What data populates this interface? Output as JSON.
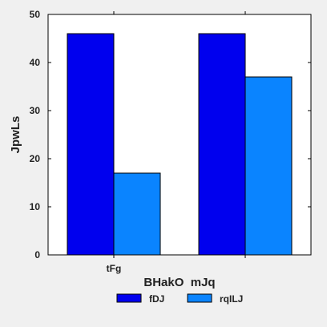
{
  "chart_data": {
    "type": "bar",
    "categories": [
      "tFg",
      ""
    ],
    "series": [
      {
        "name": "fDJ",
        "values": [
          46,
          46
        ],
        "color": "#0000ee"
      },
      {
        "name": "rqILJ",
        "values": [
          17,
          37
        ],
        "color": "#0a84ff"
      }
    ],
    "title": "",
    "xlabel": "BHakO  mJq",
    "ylabel": "JpwLs",
    "ylim": [
      0,
      50
    ],
    "yticks": [
      0,
      10,
      20,
      30,
      40,
      50
    ],
    "grid": false,
    "legend": "bottom-center"
  },
  "colors": {
    "background": "#f0f0f0",
    "plot_area": "#ffffff",
    "bar_edge": "#000000"
  }
}
